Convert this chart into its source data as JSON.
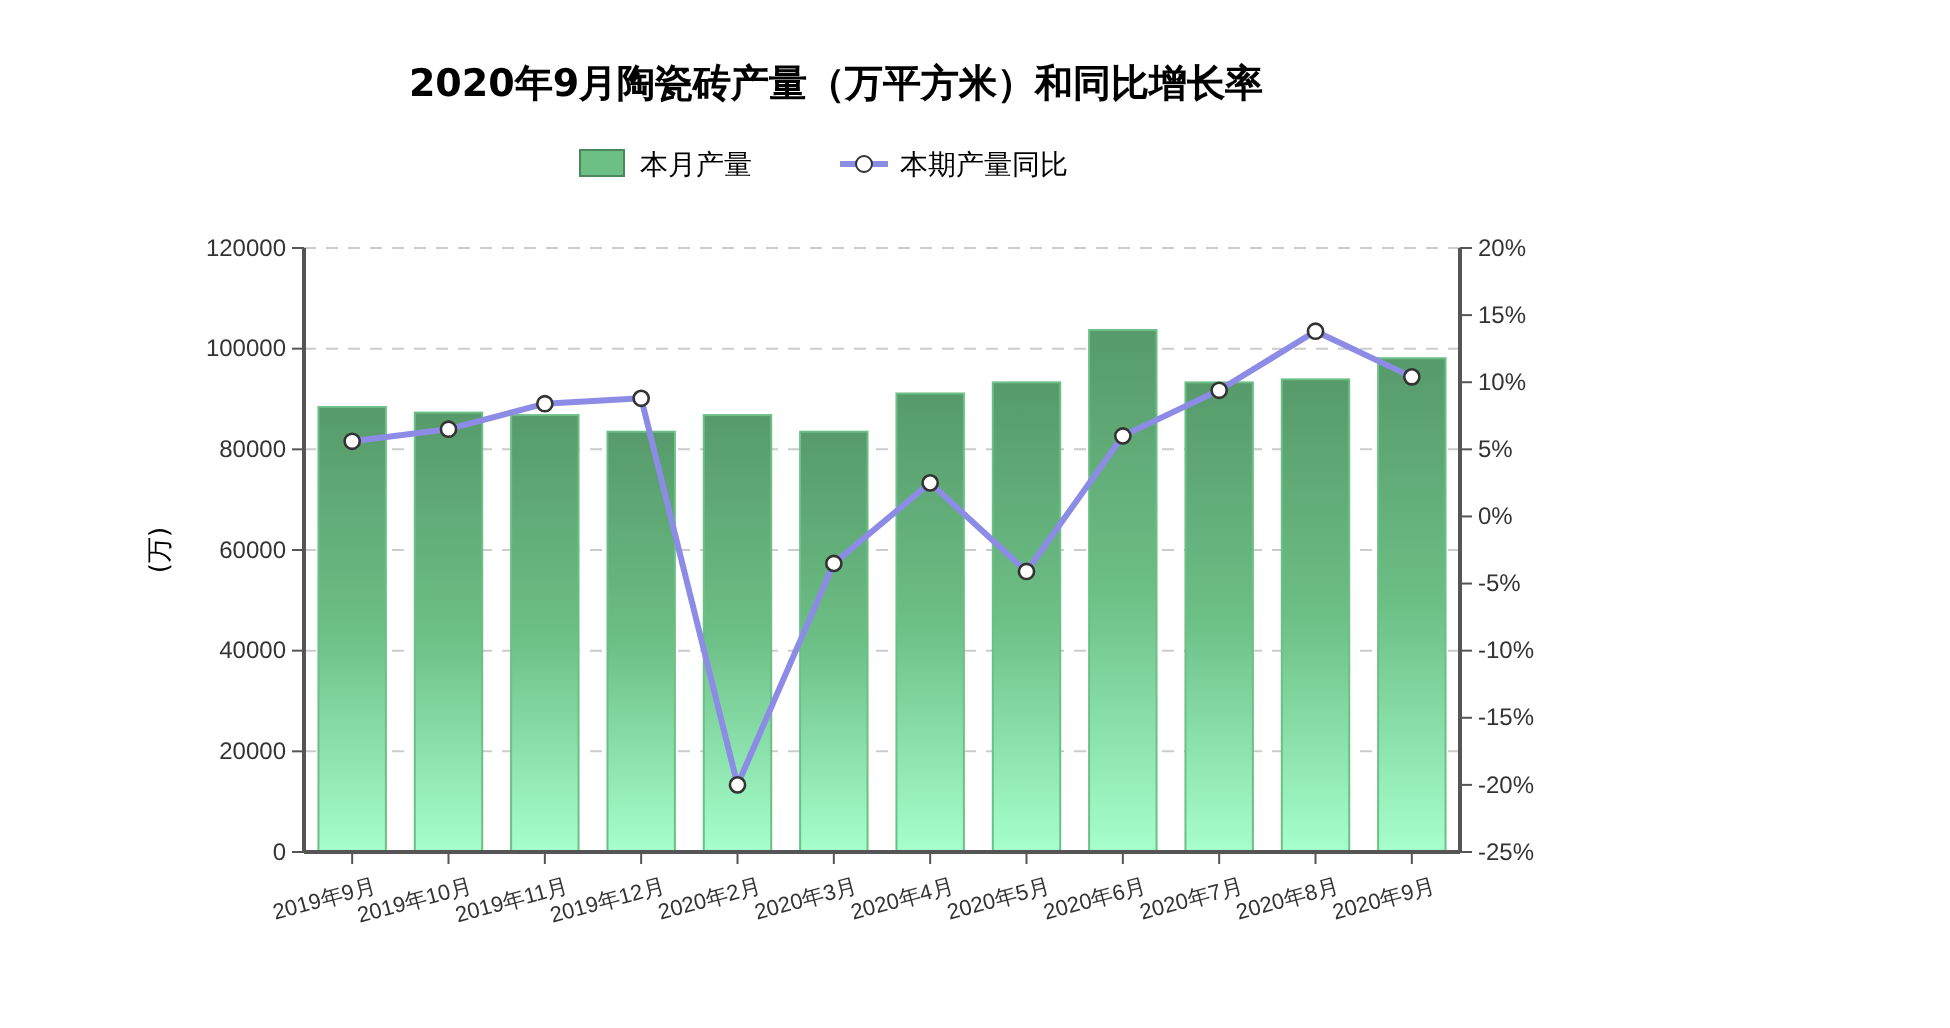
{
  "chart_data": {
    "type": "bar",
    "title": "2020年9月陶瓷砖产量（万平方米）和同比增长率",
    "ylabel": "(万)",
    "categories": [
      "2019年9月",
      "2019年10月",
      "2019年11月",
      "2019年12月",
      "2020年2月",
      "2020年3月",
      "2020年4月",
      "2020年5月",
      "2020年6月",
      "2020年7月",
      "2020年8月",
      "2020年9月"
    ],
    "series": [
      {
        "name": "本月产量",
        "color": "#6cbf85",
        "values": [
          88400,
          87300,
          86800,
          83500,
          86800,
          83500,
          91100,
          93300,
          103700,
          93300,
          93900,
          98100
        ]
      },
      {
        "name": "本期产量同比",
        "type": "line",
        "axis": "y2",
        "color": "#8c8ce6",
        "marker": "circle",
        "values": [
          5.6,
          6.5,
          8.4,
          8.8,
          -20.0,
          -3.5,
          2.5,
          -4.1,
          6.0,
          9.4,
          13.8,
          10.4
        ]
      }
    ],
    "ylim": [
      0,
      120000
    ],
    "yticks": [
      0,
      20000,
      40000,
      60000,
      80000,
      100000,
      120000
    ],
    "y2lim": [
      -25,
      20
    ],
    "y2ticks": [
      {
        "value": -25,
        "label": "-25%"
      },
      {
        "value": -20,
        "label": "-20%"
      },
      {
        "value": -15,
        "label": "-15%"
      },
      {
        "value": -10,
        "label": "-10%"
      },
      {
        "value": -5,
        "label": "-5%"
      },
      {
        "value": 0,
        "label": "0%"
      },
      {
        "value": 5,
        "label": "5%"
      },
      {
        "value": 10,
        "label": "10%"
      },
      {
        "value": 15,
        "label": "15%"
      },
      {
        "value": 20,
        "label": "20%"
      }
    ],
    "grid": "y",
    "legend": "top"
  }
}
